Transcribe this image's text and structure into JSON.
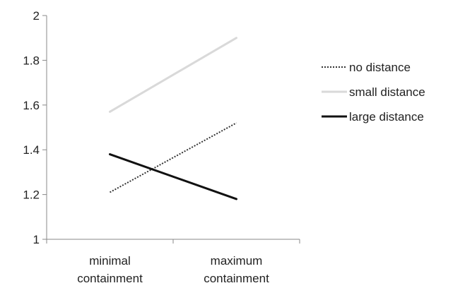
{
  "chart_data": {
    "type": "line",
    "categories": [
      [
        "minimal",
        "containment"
      ],
      [
        "maximum",
        "containment"
      ]
    ],
    "ylim": [
      1,
      2
    ],
    "yticks": [
      "1",
      "1.2",
      "1.4",
      "1.6",
      "1.8",
      "2"
    ],
    "grid": false,
    "legend_position": "right",
    "series": [
      {
        "name": "no distance",
        "values": [
          1.21,
          1.52
        ],
        "color": "#333333",
        "style": "dotted"
      },
      {
        "name": "small distance",
        "values": [
          1.57,
          1.9
        ],
        "color": "#d9d9d9",
        "style": "solid"
      },
      {
        "name": "large distance",
        "values": [
          1.38,
          1.18
        ],
        "color": "#111111",
        "style": "solid"
      }
    ]
  }
}
